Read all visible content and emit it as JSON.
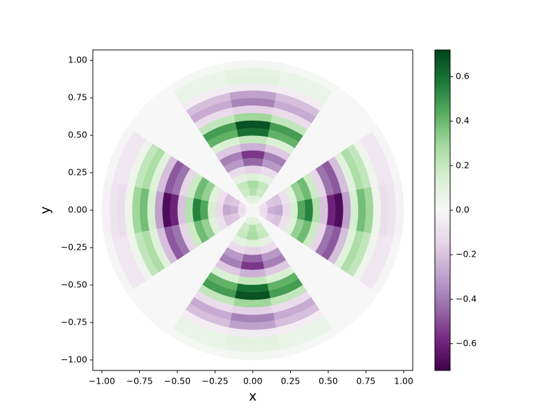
{
  "chart_data": {
    "type": "polar_heatmap",
    "xlabel": "x",
    "ylabel": "y",
    "xlim": [
      -1.06,
      1.06
    ],
    "ylim": [
      -1.07,
      1.07
    ],
    "xticks": [
      {
        "value": -1,
        "label": "−1.00"
      },
      {
        "value": -0.75,
        "label": "−0.75"
      },
      {
        "value": -0.5,
        "label": "−0.50"
      },
      {
        "value": -0.25,
        "label": "−0.25"
      },
      {
        "value": 0,
        "label": "0.00"
      },
      {
        "value": 0.25,
        "label": "0.25"
      },
      {
        "value": 0.5,
        "label": "0.50"
      },
      {
        "value": 0.75,
        "label": "0.75"
      },
      {
        "value": 1,
        "label": "1.00"
      }
    ],
    "yticks": [
      {
        "value": -1,
        "label": "−1.00"
      },
      {
        "value": -0.75,
        "label": "−0.75"
      },
      {
        "value": -0.5,
        "label": "−0.50"
      },
      {
        "value": -0.25,
        "label": "−0.25"
      },
      {
        "value": 0,
        "label": "0.00"
      },
      {
        "value": 0.25,
        "label": "0.25"
      },
      {
        "value": 0.5,
        "label": "0.50"
      },
      {
        "value": 0.75,
        "label": "0.75"
      },
      {
        "value": 1,
        "label": "1.00"
      }
    ],
    "colormap": "PRGn",
    "zlim": [
      -0.72,
      0.72
    ],
    "zticks": [
      {
        "value": -0.6,
        "label": "−0.6"
      },
      {
        "value": -0.4,
        "label": "−0.4"
      },
      {
        "value": -0.2,
        "label": "−0.2"
      },
      {
        "value": 0,
        "label": "0.0"
      },
      0.2,
      0.4,
      0.6
    ],
    "r": [
      0.025,
      0.075,
      0.125,
      0.175,
      0.225,
      0.275,
      0.325,
      0.375,
      0.425,
      0.475,
      0.525,
      0.575,
      0.625,
      0.675,
      0.725,
      0.775,
      0.825,
      0.875,
      0.925,
      0.975
    ],
    "theta": [
      0,
      22.5,
      45,
      67.5,
      90,
      112.5,
      135,
      157.5,
      180,
      202.5,
      225,
      247.5,
      270,
      292.5,
      315,
      337.5
    ],
    "z": [
      [
        -0.02,
        -0.01,
        0,
        0.01,
        0.02,
        0.01,
        0,
        -0.01,
        -0.02,
        -0.01,
        0,
        0.01,
        0.02,
        0.01,
        0,
        -0.01
      ],
      [
        -0.12,
        -0.09,
        0,
        0.09,
        0.12,
        0.09,
        0,
        -0.09,
        -0.12,
        -0.09,
        0,
        0.09,
        0.12,
        0.09,
        0,
        -0.09
      ],
      [
        -0.25,
        -0.18,
        0,
        0.18,
        0.25,
        0.18,
        0,
        -0.18,
        -0.25,
        -0.18,
        0,
        0.18,
        0.25,
        0.18,
        0,
        -0.18
      ],
      [
        -0.28,
        -0.2,
        0,
        0.2,
        0.28,
        0.2,
        0,
        -0.2,
        -0.28,
        -0.2,
        0,
        0.2,
        0.28,
        0.2,
        0,
        -0.2
      ],
      [
        -0.12,
        -0.09,
        0,
        0.09,
        0.12,
        0.09,
        0,
        -0.09,
        -0.12,
        -0.09,
        0,
        0.09,
        0.12,
        0.09,
        0,
        -0.09
      ],
      [
        0.15,
        0.11,
        0,
        -0.11,
        -0.15,
        -0.11,
        0,
        0.11,
        0.15,
        0.11,
        0,
        -0.11,
        -0.15,
        -0.11,
        0,
        0.11
      ],
      [
        0.45,
        0.32,
        0,
        -0.32,
        -0.45,
        -0.32,
        0,
        0.32,
        0.45,
        0.32,
        0,
        -0.32,
        -0.45,
        -0.32,
        0,
        0.32
      ],
      [
        0.55,
        0.39,
        0,
        -0.39,
        -0.55,
        -0.39,
        0,
        0.39,
        0.55,
        0.39,
        0,
        -0.39,
        -0.55,
        -0.39,
        0,
        0.39
      ],
      [
        0.25,
        0.18,
        0,
        -0.18,
        -0.25,
        -0.18,
        0,
        0.18,
        0.25,
        0.18,
        0,
        -0.18,
        -0.25,
        -0.18,
        0,
        0.18
      ],
      [
        -0.2,
        -0.14,
        0,
        0.14,
        0.2,
        0.14,
        0,
        -0.14,
        -0.2,
        -0.14,
        0,
        0.14,
        0.2,
        0.14,
        0,
        -0.14
      ],
      [
        -0.6,
        -0.42,
        0,
        0.42,
        0.6,
        0.42,
        0,
        -0.42,
        -0.6,
        -0.42,
        0,
        0.42,
        0.6,
        0.42,
        0,
        -0.42
      ],
      [
        -0.68,
        -0.48,
        0,
        0.48,
        0.68,
        0.48,
        0,
        -0.48,
        -0.68,
        -0.48,
        0,
        0.48,
        0.68,
        0.48,
        0,
        -0.48
      ],
      [
        -0.3,
        -0.21,
        0,
        0.21,
        0.3,
        0.21,
        0,
        -0.21,
        -0.3,
        -0.21,
        0,
        0.21,
        0.3,
        0.21,
        0,
        -0.21
      ],
      [
        0.15,
        0.11,
        0,
        -0.11,
        -0.15,
        -0.11,
        0,
        0.11,
        0.15,
        0.11,
        0,
        -0.11,
        -0.15,
        -0.11,
        0,
        0.11
      ],
      [
        0.38,
        0.27,
        0,
        -0.27,
        -0.38,
        -0.27,
        0,
        0.27,
        0.38,
        0.27,
        0,
        -0.27,
        -0.38,
        -0.27,
        0,
        0.27
      ],
      [
        0.3,
        0.21,
        0,
        -0.21,
        -0.3,
        -0.21,
        0,
        0.21,
        0.3,
        0.21,
        0,
        -0.21,
        -0.3,
        -0.21,
        0,
        0.21
      ],
      [
        0.05,
        0.04,
        0,
        -0.04,
        -0.05,
        -0.04,
        0,
        0.04,
        0.05,
        0.04,
        0,
        -0.04,
        -0.05,
        -0.04,
        0,
        0.04
      ],
      [
        -0.1,
        -0.07,
        0,
        0.07,
        0.1,
        0.07,
        0,
        -0.07,
        -0.1,
        -0.07,
        0,
        0.07,
        0.1,
        0.07,
        0,
        -0.07
      ],
      [
        -0.08,
        -0.06,
        0,
        0.06,
        0.08,
        0.06,
        0,
        -0.06,
        -0.08,
        -0.06,
        0,
        0.06,
        0.08,
        0.06,
        0,
        -0.06
      ],
      [
        -0.02,
        -0.01,
        0,
        0.01,
        0.02,
        0.01,
        0,
        -0.01,
        -0.02,
        -0.01,
        0,
        0.01,
        0.02,
        0.01,
        0,
        -0.01
      ]
    ]
  }
}
